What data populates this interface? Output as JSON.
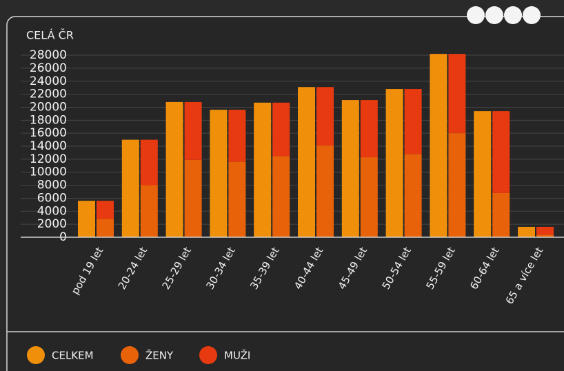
{
  "chart_data": {
    "type": "bar",
    "title": "CELÁ ČR",
    "categories": [
      "pod 19 let",
      "20-24 let",
      "25-29 let",
      "30-34 let",
      "35-39 let",
      "40-44 let",
      "45-49 let",
      "50-54 let",
      "55-59 let",
      "60-64 let",
      "65 a více let"
    ],
    "series": [
      {
        "name": "CELKEM",
        "color": "#f0900a",
        "values": [
          5600,
          15000,
          20800,
          19600,
          20700,
          23100,
          21100,
          22800,
          28200,
          19400,
          1600
        ]
      },
      {
        "name": "ŽENY",
        "color": "#e8620a",
        "values": [
          2800,
          8000,
          11900,
          11600,
          12500,
          14100,
          12300,
          12800,
          16000,
          6800,
          400
        ]
      },
      {
        "name": "MUŽI",
        "color": "#e83a10",
        "values": [
          2800,
          7000,
          8900,
          8000,
          8200,
          9000,
          8800,
          10000,
          12200,
          12600,
          1200
        ]
      }
    ],
    "ylim": [
      0,
      28800
    ],
    "yticks": [
      0,
      2000,
      4000,
      6000,
      8000,
      10000,
      12000,
      14000,
      16000,
      18000,
      20000,
      22000,
      24000,
      26000,
      28000
    ],
    "grid": true
  }
}
